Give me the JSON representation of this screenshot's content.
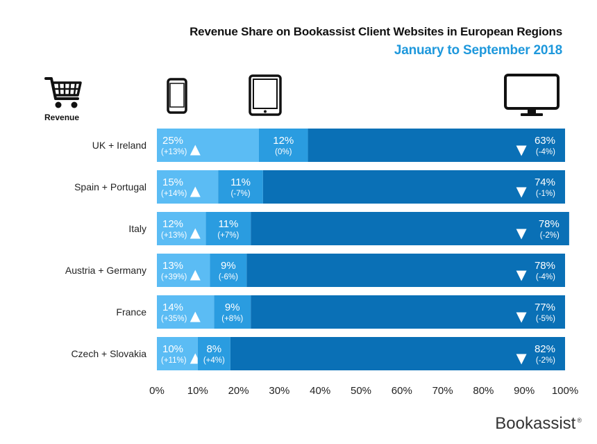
{
  "chart_data": {
    "type": "bar",
    "stacked": true,
    "orientation": "horizontal",
    "title": "Revenue Share on Bookassist Client Websites in European Regions",
    "subtitle": "January to September 2018",
    "categories": [
      "UK + Ireland",
      "Spain + Portugal",
      "Italy",
      "Austria + Germany",
      "France",
      "Czech + Slovakia"
    ],
    "series": [
      {
        "icon": "smartphone-icon",
        "color": "#5bbcf4",
        "values": [
          25,
          15,
          12,
          13,
          14,
          10
        ],
        "labels": [
          "25%",
          "15%",
          "12%",
          "13%",
          "14%",
          "10%"
        ],
        "changes": [
          "(+13%)",
          "(+14%)",
          "(+13%)",
          "(+39%)",
          "(+35%)",
          "(+11%)"
        ],
        "trend": [
          "up",
          "up",
          "up",
          "up",
          "up",
          "up"
        ]
      },
      {
        "icon": "tablet-icon",
        "color": "#2a9ce0",
        "values": [
          12,
          11,
          11,
          9,
          9,
          8
        ],
        "labels": [
          "12%",
          "11%",
          "11%",
          "9%",
          "9%",
          "8%"
        ],
        "changes": [
          "(0%)",
          "(-7%)",
          "(+7%)",
          "(-6%)",
          "(+8%)",
          "(+4%)"
        ]
      },
      {
        "icon": "desktop-icon",
        "color": "#0a70b6",
        "values": [
          63,
          74,
          78,
          78,
          77,
          82
        ],
        "labels": [
          "63%",
          "74%",
          "78%",
          "78%",
          "77%",
          "82%"
        ],
        "changes": [
          "(-4%)",
          "(-1%)",
          "(-2%)",
          "(-4%)",
          "(-5%)",
          "(-2%)"
        ],
        "trend": [
          "down",
          "down",
          "down",
          "down",
          "down",
          "down"
        ]
      }
    ],
    "xlim": [
      0,
      100
    ],
    "ticks": [
      "0%",
      "10%",
      "20%",
      "30%",
      "40%",
      "50%",
      "60%",
      "70%",
      "80%",
      "90%",
      "100%"
    ],
    "grid": false,
    "legend": "icons above bars"
  },
  "header": {
    "revenue_label": "Revenue",
    "subtitle_color": "#1e98dc"
  },
  "footer": {
    "brand": "Bookassist",
    "brand_mark": "®"
  }
}
